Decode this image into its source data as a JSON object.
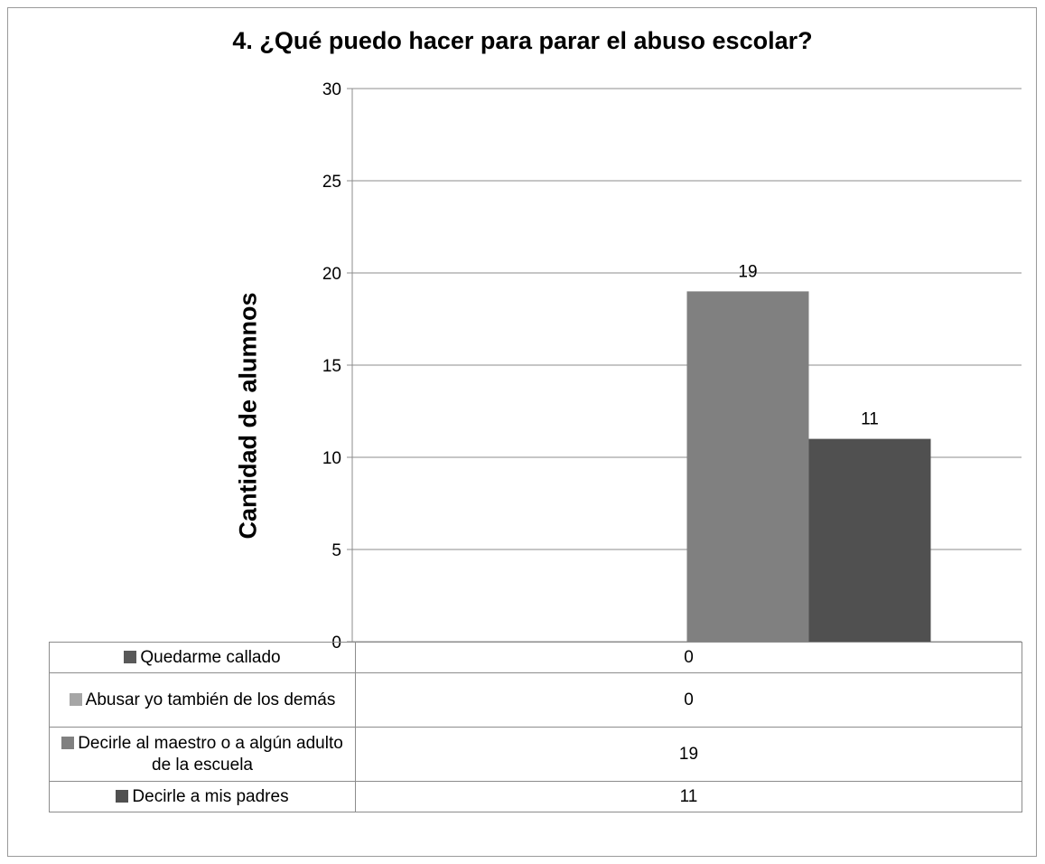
{
  "chart_data": {
    "type": "bar",
    "title": "4. ¿Qué puedo hacer para parar el abuso escolar?",
    "xlabel": "",
    "ylabel": "Cantidad de alumnos",
    "ylim": [
      0,
      30
    ],
    "yticks": [
      0,
      5,
      10,
      15,
      20,
      25,
      30
    ],
    "grid": true,
    "legend": "data-table",
    "categories": [
      ""
    ],
    "series": [
      {
        "name": "Quedarme callado",
        "values": [
          0
        ],
        "color": "#595959",
        "label": "0"
      },
      {
        "name": "Abusar yo también de los demás",
        "values": [
          0
        ],
        "color": "#a6a6a6",
        "label": "0"
      },
      {
        "name": "Decirle al maestro o a algún adulto de la escuela",
        "values": [
          19
        ],
        "color": "#808080",
        "label": "19"
      },
      {
        "name": "Decirle a mis padres",
        "values": [
          11
        ],
        "color": "#505050",
        "label": "11"
      }
    ],
    "data_labels": [
      "19",
      "11"
    ]
  }
}
